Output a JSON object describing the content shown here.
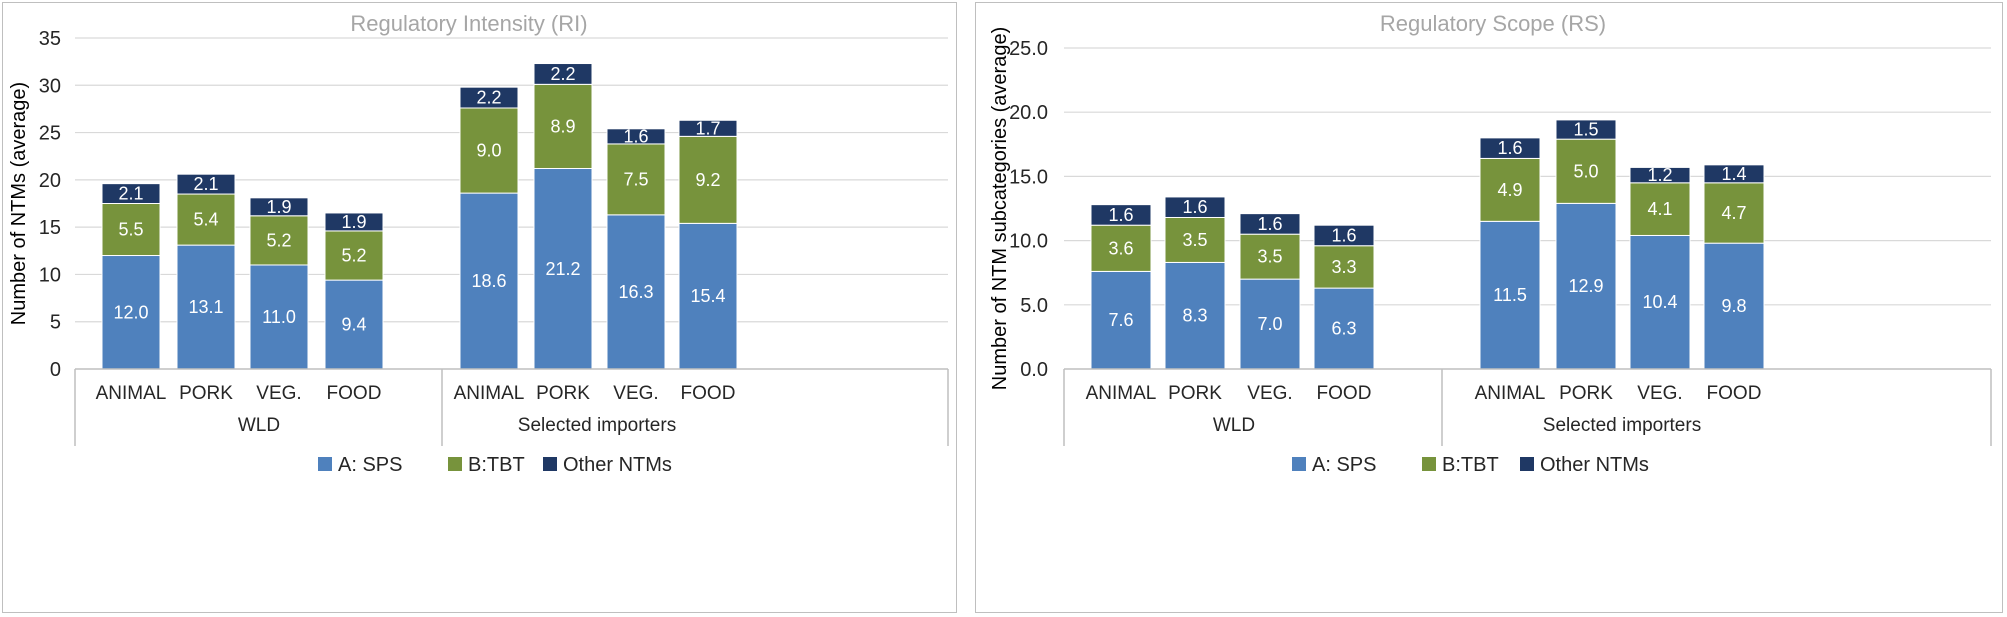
{
  "colors": {
    "sps": "#4f81bd",
    "tbt": "#77933c",
    "other": "#1f3864",
    "grid": "#d9d9d9",
    "axis": "#bfbfbf"
  },
  "chart_data": [
    {
      "type": "bar",
      "stacked": true,
      "title": "Regulatory  Intensity  (RI)",
      "ylabel": "Number of NTMs (average)",
      "xlabel": "",
      "ylim": [
        0,
        35
      ],
      "yticks": [
        "0",
        "5",
        "10",
        "15",
        "20",
        "25",
        "30",
        "35"
      ],
      "groups": [
        "WLD",
        "Selected importers"
      ],
      "categories": [
        "ANIMAL",
        "PORK",
        "VEG.",
        "FOOD",
        "ANIMAL",
        "PORK",
        "VEG.",
        "FOOD"
      ],
      "series": [
        {
          "name": "A: SPS",
          "values": [
            12.0,
            13.1,
            11.0,
            9.4,
            18.6,
            21.2,
            16.3,
            15.4
          ],
          "labels": [
            "12.0",
            "13.1",
            "11.0",
            "9.4",
            "18.6",
            "21.2",
            "16.3",
            "15.4"
          ]
        },
        {
          "name": "B:TBT",
          "values": [
            5.5,
            5.4,
            5.2,
            5.2,
            9.0,
            8.9,
            7.5,
            9.2
          ],
          "labels": [
            "5.5",
            "5.4",
            "5.2",
            "5.2",
            "9.0",
            "8.9",
            "7.5",
            "9.2"
          ]
        },
        {
          "name": "Other NTMs",
          "values": [
            2.1,
            2.1,
            1.9,
            1.9,
            2.2,
            2.2,
            1.6,
            1.7
          ],
          "labels": [
            "2.1",
            "2.1",
            "1.9",
            "1.9",
            "2.2",
            "2.2",
            "1.6",
            "1.7"
          ]
        }
      ],
      "grid": true,
      "legend": "bottom"
    },
    {
      "type": "bar",
      "stacked": true,
      "title": "Regulatory  Scope  (RS)",
      "ylabel": "Number of NTM subcategories (average)",
      "xlabel": "",
      "ylim": [
        0,
        25
      ],
      "yticks": [
        "0.0",
        "5.0",
        "10.0",
        "15.0",
        "20.0",
        "25.0"
      ],
      "groups": [
        "WLD",
        "Selected importers"
      ],
      "categories": [
        "ANIMAL",
        "PORK",
        "VEG.",
        "FOOD",
        "ANIMAL",
        "PORK",
        "VEG.",
        "FOOD"
      ],
      "series": [
        {
          "name": "A: SPS",
          "values": [
            7.6,
            8.3,
            7.0,
            6.3,
            11.5,
            12.9,
            10.4,
            9.8
          ],
          "labels": [
            "7.6",
            "8.3",
            "7.0",
            "6.3",
            "11.5",
            "12.9",
            "10.4",
            "9.8"
          ]
        },
        {
          "name": "B:TBT",
          "values": [
            3.6,
            3.5,
            3.5,
            3.3,
            4.9,
            5.0,
            4.1,
            4.7
          ],
          "labels": [
            "3.6",
            "3.5",
            "3.5",
            "3.3",
            "4.9",
            "5.0",
            "4.1",
            "4.7"
          ]
        },
        {
          "name": "Other NTMs",
          "values": [
            1.6,
            1.6,
            1.6,
            1.6,
            1.6,
            1.5,
            1.2,
            1.4
          ],
          "labels": [
            "1.6",
            "1.6",
            "1.6",
            "1.6",
            "1.6",
            "1.5",
            "1.2",
            "1.4"
          ]
        }
      ],
      "grid": true,
      "legend": "bottom"
    }
  ]
}
